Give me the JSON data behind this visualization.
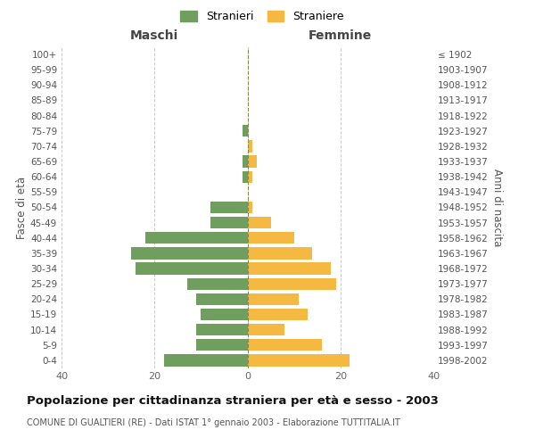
{
  "age_groups": [
    "0-4",
    "5-9",
    "10-14",
    "15-19",
    "20-24",
    "25-29",
    "30-34",
    "35-39",
    "40-44",
    "45-49",
    "50-54",
    "55-59",
    "60-64",
    "65-69",
    "70-74",
    "75-79",
    "80-84",
    "85-89",
    "90-94",
    "95-99",
    "100+"
  ],
  "birth_years": [
    "1998-2002",
    "1993-1997",
    "1988-1992",
    "1983-1987",
    "1978-1982",
    "1973-1977",
    "1968-1972",
    "1963-1967",
    "1958-1962",
    "1953-1957",
    "1948-1952",
    "1943-1947",
    "1938-1942",
    "1933-1937",
    "1928-1932",
    "1923-1927",
    "1918-1922",
    "1913-1917",
    "1908-1912",
    "1903-1907",
    "≤ 1902"
  ],
  "maschi": [
    18,
    11,
    11,
    10,
    11,
    13,
    24,
    25,
    22,
    8,
    8,
    0,
    1,
    1,
    0,
    1,
    0,
    0,
    0,
    0,
    0
  ],
  "femmine": [
    22,
    16,
    8,
    13,
    11,
    19,
    18,
    14,
    10,
    5,
    1,
    0,
    1,
    2,
    1,
    0,
    0,
    0,
    0,
    0,
    0
  ],
  "color_maschi": "#6f9e5e",
  "color_femmine": "#f5b942",
  "background_color": "#ffffff",
  "grid_color": "#cccccc",
  "title": "Popolazione per cittadinanza straniera per età e sesso - 2003",
  "subtitle": "COMUNE DI GUALTIERI (RE) - Dati ISTAT 1° gennaio 2003 - Elaborazione TUTTITALIA.IT",
  "ylabel_left": "Fasce di età",
  "ylabel_right": "Anni di nascita",
  "legend_maschi": "Stranieri",
  "legend_femmine": "Straniere",
  "xlim": 40,
  "header_maschi": "Maschi",
  "header_femmine": "Femmine"
}
